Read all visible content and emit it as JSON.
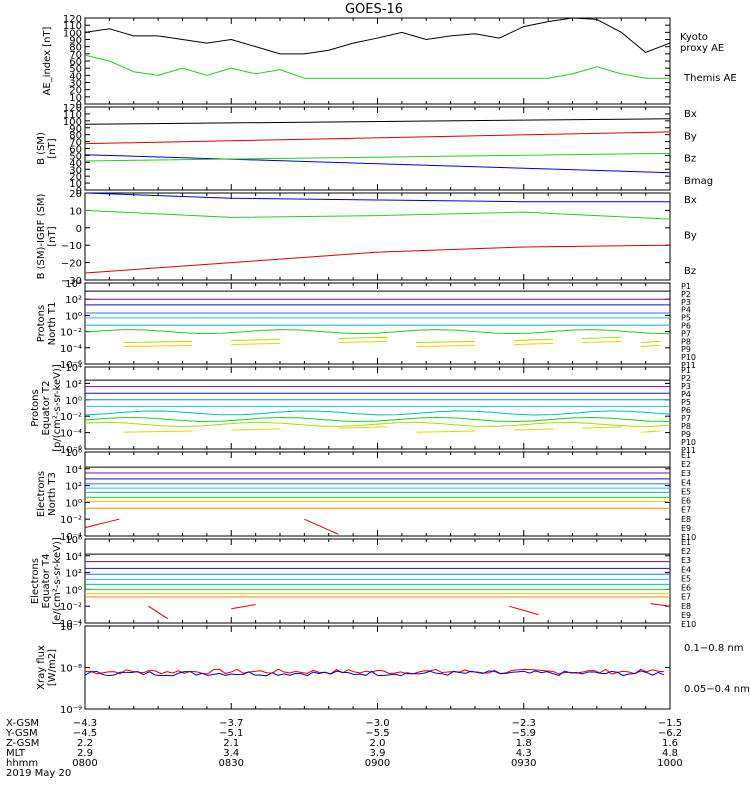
{
  "title": "GOES-16",
  "colors": {
    "black": "#000000",
    "blue": "#0000cc",
    "green": "#22cc22",
    "red": "#dd0000",
    "p1": "#000000",
    "p2": "#7a0b7a",
    "p3": "#1111cc",
    "p4": "#1a7ae0",
    "p5": "#22bbee",
    "p6": "#00bbbb",
    "p7": "#22cc22",
    "p8": "#aadd00",
    "p9": "#f0d000",
    "p10": "#ff8800",
    "p11": "#dd0000"
  },
  "chart_data": [
    {
      "type": "line",
      "panel": "ae",
      "ylabel": "AE_index [nT]",
      "ylim": [
        0,
        120
      ],
      "yticks": [
        "0",
        "10",
        "20",
        "30",
        "40",
        "50",
        "60",
        "70",
        "80",
        "90",
        "100",
        "110",
        "120"
      ],
      "x": [
        0,
        5,
        10,
        15,
        20,
        25,
        30,
        35,
        40,
        45,
        50,
        55,
        60,
        65,
        70,
        75,
        80,
        85,
        90,
        95,
        100,
        105,
        110,
        115,
        120
      ],
      "series": [
        {
          "name": "Kyoto proxy AE",
          "color": "green",
          "values": [
            68,
            60,
            45,
            40,
            50,
            40,
            50,
            42,
            48,
            36,
            36,
            36,
            36,
            36,
            36,
            36,
            36,
            36,
            36,
            36,
            42,
            52,
            42,
            36,
            36
          ],
          "label_lines": [
            "Kyoto",
            "proxy AE"
          ]
        },
        {
          "name": "Themis AE",
          "color": "black",
          "values": [
            100,
            105,
            95,
            95,
            90,
            85,
            90,
            80,
            70,
            70,
            75,
            85,
            92,
            100,
            90,
            95,
            98,
            92,
            108,
            115,
            120,
            118,
            100,
            72,
            85
          ],
          "label_lines": [
            "Themis AE"
          ]
        }
      ]
    },
    {
      "type": "line",
      "panel": "bsm",
      "ylabel_lines": [
        "B (SM)",
        "[nT]"
      ],
      "ylim": [
        0,
        120
      ],
      "yticks": [
        "0",
        "10",
        "20",
        "30",
        "40",
        "50",
        "60",
        "70",
        "80",
        "90",
        "100",
        "110",
        "120"
      ],
      "x": [
        0,
        120
      ],
      "series": [
        {
          "name": "Bx",
          "color": "blue",
          "values": [
            51,
            25
          ]
        },
        {
          "name": "By",
          "color": "green",
          "values": [
            42,
            53
          ]
        },
        {
          "name": "Bz",
          "color": "red",
          "values": [
            67,
            84
          ]
        },
        {
          "name": "Bmag",
          "color": "black",
          "values": [
            95,
            103
          ]
        }
      ]
    },
    {
      "type": "line",
      "panel": "bigrf",
      "ylabel_lines": [
        "B (SM)-IGRF (SM)",
        "[nT]"
      ],
      "ylim": [
        -30,
        20
      ],
      "yticks": [
        "−30",
        "−20",
        "−10",
        "0",
        "10",
        "20"
      ],
      "x": [
        0,
        30,
        60,
        90,
        120
      ],
      "series": [
        {
          "name": "Bx",
          "color": "blue",
          "values": [
            20,
            17,
            16,
            15,
            15
          ]
        },
        {
          "name": "By",
          "color": "green",
          "values": [
            10,
            6,
            7,
            9,
            5
          ]
        },
        {
          "name": "Bz",
          "color": "red",
          "values": [
            -26,
            -20,
            -14,
            -11,
            -10
          ]
        }
      ]
    },
    {
      "type": "line",
      "panel": "p1",
      "ylabel_lines": [
        "Protons",
        "North T1"
      ],
      "scale": "log",
      "ylim": [
        -6,
        4
      ],
      "yticks": [
        "10⁻⁶",
        "10⁻⁴",
        "10⁻²",
        "10⁰",
        "10²",
        "10⁴"
      ],
      "series_labels": [
        "P1",
        "P2",
        "P3",
        "P4",
        "P5",
        "P6",
        "P7",
        "P8",
        "P9",
        "P10",
        "P11"
      ],
      "series": [
        {
          "name": "P1",
          "color": "p1",
          "level": 3.0
        },
        {
          "name": "P2",
          "color": "p2",
          "level": 2.0
        },
        {
          "name": "P3",
          "color": "p3",
          "level": 1.3
        },
        {
          "name": "P4",
          "color": "p4",
          "level": 0.3
        },
        {
          "name": "P5",
          "color": "p5",
          "level": -0.3
        },
        {
          "name": "P6",
          "color": "p6",
          "level": -1.2
        },
        {
          "name": "P7",
          "color": "p7",
          "level": -2.0,
          "wavy": true
        },
        {
          "name": "P8",
          "color": "p8",
          "level": -3.1,
          "segments": true
        },
        {
          "name": "P9",
          "color": "p9",
          "level": -3.6,
          "segments": true
        }
      ]
    },
    {
      "type": "line",
      "panel": "p2",
      "ylabel_lines": [
        "Protons",
        "Equator T2",
        "[p/(cm²-s-sr-keV)]"
      ],
      "scale": "log",
      "ylim": [
        -6,
        4
      ],
      "yticks": [
        "10⁻⁶",
        "10⁻⁴",
        "10⁻²",
        "10⁰",
        "10²",
        "10⁴"
      ],
      "series_labels": [
        "P1",
        "P2",
        "P3",
        "P4",
        "P5",
        "P6",
        "P7",
        "P8",
        "P9",
        "P10",
        "P11"
      ],
      "series": [
        {
          "name": "P1",
          "color": "p1",
          "level": 2.4
        },
        {
          "name": "P2",
          "color": "p2",
          "level": 1.6
        },
        {
          "name": "P3",
          "color": "p3",
          "level": 0.8
        },
        {
          "name": "P4",
          "color": "p4",
          "level": 0.0
        },
        {
          "name": "P5",
          "color": "p5",
          "level": -0.8
        },
        {
          "name": "P6",
          "color": "p6",
          "level": -1.6,
          "wavy": true
        },
        {
          "name": "P7",
          "color": "p7",
          "level": -2.4,
          "wavy": true
        },
        {
          "name": "P8",
          "color": "p8",
          "level": -3.0,
          "wavy": true
        },
        {
          "name": "P9",
          "color": "p9",
          "level": -3.7,
          "segments": true
        }
      ]
    },
    {
      "type": "line",
      "panel": "e1",
      "ylabel_lines": [
        "Electrons",
        "North T3"
      ],
      "scale": "log",
      "ylim": [
        -4,
        6
      ],
      "yticks": [
        "10⁻⁴",
        "10⁻²",
        "10⁰",
        "10²",
        "10⁴",
        "10⁶"
      ],
      "series_labels": [
        "E1",
        "E2",
        "E3",
        "E4",
        "E5",
        "E6",
        "E7",
        "E8",
        "E9",
        "E10"
      ],
      "series": [
        {
          "name": "E1",
          "color": "p1",
          "level": 4.2
        },
        {
          "name": "E2",
          "color": "p2",
          "level": 3.5
        },
        {
          "name": "E3",
          "color": "p3",
          "level": 2.8
        },
        {
          "name": "E4",
          "color": "p4",
          "level": 2.2
        },
        {
          "name": "E5",
          "color": "p5",
          "level": 1.7
        },
        {
          "name": "E6",
          "color": "p6",
          "level": 1.2
        },
        {
          "name": "E7",
          "color": "p7",
          "level": 0.6
        },
        {
          "name": "E8",
          "color": "p9",
          "level": 0.1
        },
        {
          "name": "E9",
          "color": "p10",
          "level": -0.7
        },
        {
          "name": "E10",
          "color": "p11",
          "diag": [
            [
              0,
              -3
            ],
            [
              7,
              -2
            ],
            [
              45,
              -2
            ],
            [
              52,
              -3.8
            ]
          ]
        }
      ]
    },
    {
      "type": "line",
      "panel": "e2",
      "ylabel_lines": [
        "Electrons",
        "Equator T4",
        "[e/(cm²-s-sr-keV)]"
      ],
      "scale": "log",
      "ylim": [
        -4,
        6
      ],
      "yticks": [
        "10⁻⁴",
        "10⁻²",
        "10⁰",
        "10²",
        "10⁴",
        "10⁶"
      ],
      "series_labels": [
        "E1",
        "E2",
        "E3",
        "E4",
        "E5",
        "E6",
        "E7",
        "E8",
        "E9",
        "E10"
      ],
      "series": [
        {
          "name": "E1",
          "color": "p1",
          "level": 4.2
        },
        {
          "name": "E2",
          "color": "p2",
          "level": 3.3
        },
        {
          "name": "E3",
          "color": "p3",
          "level": 2.5
        },
        {
          "name": "E4",
          "color": "p4",
          "level": 1.8
        },
        {
          "name": "E5",
          "color": "p5",
          "level": 1.2
        },
        {
          "name": "E6",
          "color": "p6",
          "level": 0.6
        },
        {
          "name": "E7",
          "color": "p7",
          "level": 0.0
        },
        {
          "name": "E8",
          "color": "p9",
          "level": -0.5
        },
        {
          "name": "E9",
          "color": "p10",
          "level": -0.9
        },
        {
          "name": "E10",
          "color": "p11",
          "diag": [
            [
              13,
              -2
            ],
            [
              17,
              -3.5
            ],
            [
              30,
              -2.3
            ],
            [
              35,
              -1.8
            ],
            [
              87,
              -2
            ],
            [
              93,
              -3
            ],
            [
              116,
              -1.7
            ],
            [
              120,
              -2
            ]
          ]
        }
      ]
    },
    {
      "type": "line",
      "panel": "xray",
      "ylabel_lines": [
        "Xray flux",
        "[W/m2]"
      ],
      "scale": "log",
      "ylim": [
        -9,
        -7
      ],
      "yticks": [
        "10⁻⁹",
        "10⁻⁸",
        "10⁻⁷"
      ],
      "series": [
        {
          "name": "0.1-0.8 nm",
          "color": "red",
          "level": -8.1
        },
        {
          "name": "0.05-0.4 nm",
          "color": "blue",
          "level": -8.14
        }
      ],
      "label_lines": [
        "0.1−0.8 nm",
        "0.05−0.4 nm"
      ]
    }
  ],
  "xaxis": {
    "positions": [
      0,
      30,
      60,
      90,
      120
    ],
    "rows": [
      {
        "name": "X-GSM",
        "values": [
          "−4.3",
          "−3.7",
          "−3.0",
          "−2.3",
          "−1.5"
        ]
      },
      {
        "name": "Y-GSM",
        "values": [
          "−4.5",
          "−5.1",
          "−5.5",
          "−5.9",
          "−6.2"
        ]
      },
      {
        "name": "Z-GSM",
        "values": [
          "2.2",
          "2.1",
          "2.0",
          "1.8",
          "1.6"
        ]
      },
      {
        "name": "MLT",
        "values": [
          "2.9",
          "3.4",
          "3.9",
          "4.3",
          "4.8"
        ]
      },
      {
        "name": "hhmm",
        "values": [
          "0800",
          "0830",
          "0900",
          "0930",
          "1000"
        ]
      }
    ],
    "date": "2019 May 20"
  }
}
